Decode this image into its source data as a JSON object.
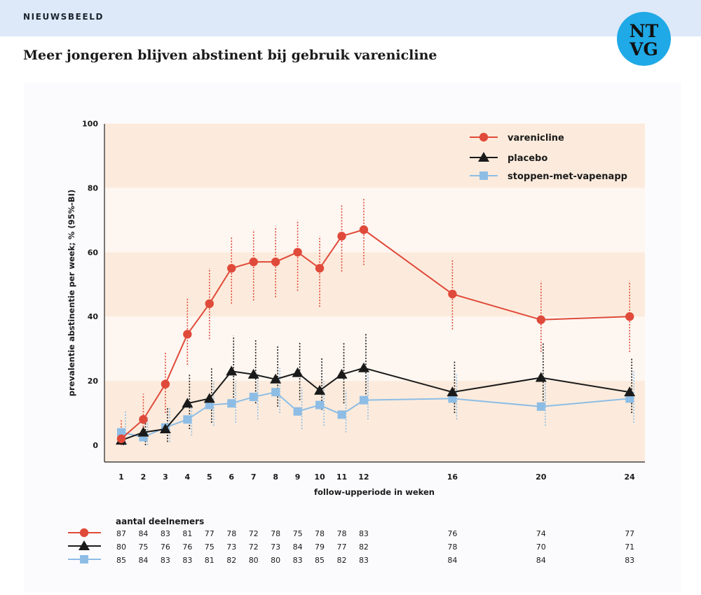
{
  "header": {
    "section": "NIEUWSBEELD",
    "logo_line1": "NT",
    "logo_line2": "VG"
  },
  "headline": "Meer jongeren blijven abstinent bij gebruik varenicline",
  "colors": {
    "varenicline": "#e04a3a",
    "placebo": "#1a1a1a",
    "app": "#8dbde5",
    "band_dark": "#fcebdc",
    "band_light": "#fdf6f1",
    "header_bg": "#dde9f8",
    "logo": "#1fa9e6"
  },
  "chart_data": {
    "type": "line",
    "title": "",
    "xlabel": "follow-upperiode in weken",
    "ylabel": "prevalentie abstinentie per week; % (95%-BI)",
    "ylim": [
      0,
      100
    ],
    "yticks": [
      "0",
      "20",
      "40",
      "60",
      "80",
      "100"
    ],
    "x": [
      1,
      2,
      3,
      4,
      5,
      6,
      7,
      8,
      9,
      10,
      11,
      12,
      16,
      20,
      24
    ],
    "legend_position": "top-right",
    "series": [
      {
        "name": "varenicline",
        "marker": "circle",
        "values": [
          2,
          8,
          19,
          34.5,
          44,
          55,
          57,
          57,
          60,
          55,
          65,
          67,
          47,
          39,
          40
        ],
        "ci_low": [
          0,
          2,
          10,
          25,
          33,
          44,
          45,
          46,
          48,
          43,
          54,
          56,
          36,
          29,
          29
        ],
        "ci_high": [
          8,
          16,
          29,
          46,
          55,
          65,
          67,
          68,
          70,
          65,
          75,
          77,
          58,
          51,
          51
        ]
      },
      {
        "name": "placebo",
        "marker": "triangle",
        "values": [
          1.5,
          4,
          5,
          13,
          14.5,
          23,
          22,
          20.5,
          22.5,
          17,
          22,
          24,
          16.5,
          21,
          16.5
        ],
        "ci_low": [
          0,
          0,
          1,
          5,
          7,
          12,
          13,
          12,
          14,
          11,
          13,
          14,
          10,
          12,
          10
        ],
        "ci_high": [
          5,
          9,
          12,
          22,
          24,
          34,
          33,
          31,
          32,
          27,
          32,
          35,
          26,
          32,
          27
        ]
      },
      {
        "name": "stoppen-met-vapenapp",
        "marker": "square",
        "values": [
          4,
          2.5,
          5.5,
          8,
          12.5,
          13,
          15,
          16.5,
          10.5,
          12.5,
          9.5,
          14,
          14.5,
          12,
          14.5
        ],
        "ci_low": [
          0,
          0,
          1,
          3,
          6,
          7,
          8,
          10,
          5,
          6,
          4,
          8,
          8,
          6,
          7
        ],
        "ci_high": [
          11,
          9,
          12,
          14,
          20,
          20,
          22,
          24,
          18,
          20,
          17,
          22,
          22,
          20,
          23
        ]
      }
    ],
    "participants_title": "aantal deelnemers",
    "participants": [
      [
        "87",
        "84",
        "83",
        "81",
        "77",
        "78",
        "72",
        "78",
        "75",
        "78",
        "78",
        "83",
        "76",
        "74",
        "77"
      ],
      [
        "80",
        "75",
        "76",
        "76",
        "75",
        "73",
        "72",
        "73",
        "84",
        "79",
        "77",
        "82",
        "78",
        "70",
        "71"
      ],
      [
        "85",
        "84",
        "83",
        "83",
        "81",
        "82",
        "80",
        "80",
        "83",
        "85",
        "82",
        "83",
        "84",
        "84",
        "83"
      ]
    ]
  }
}
